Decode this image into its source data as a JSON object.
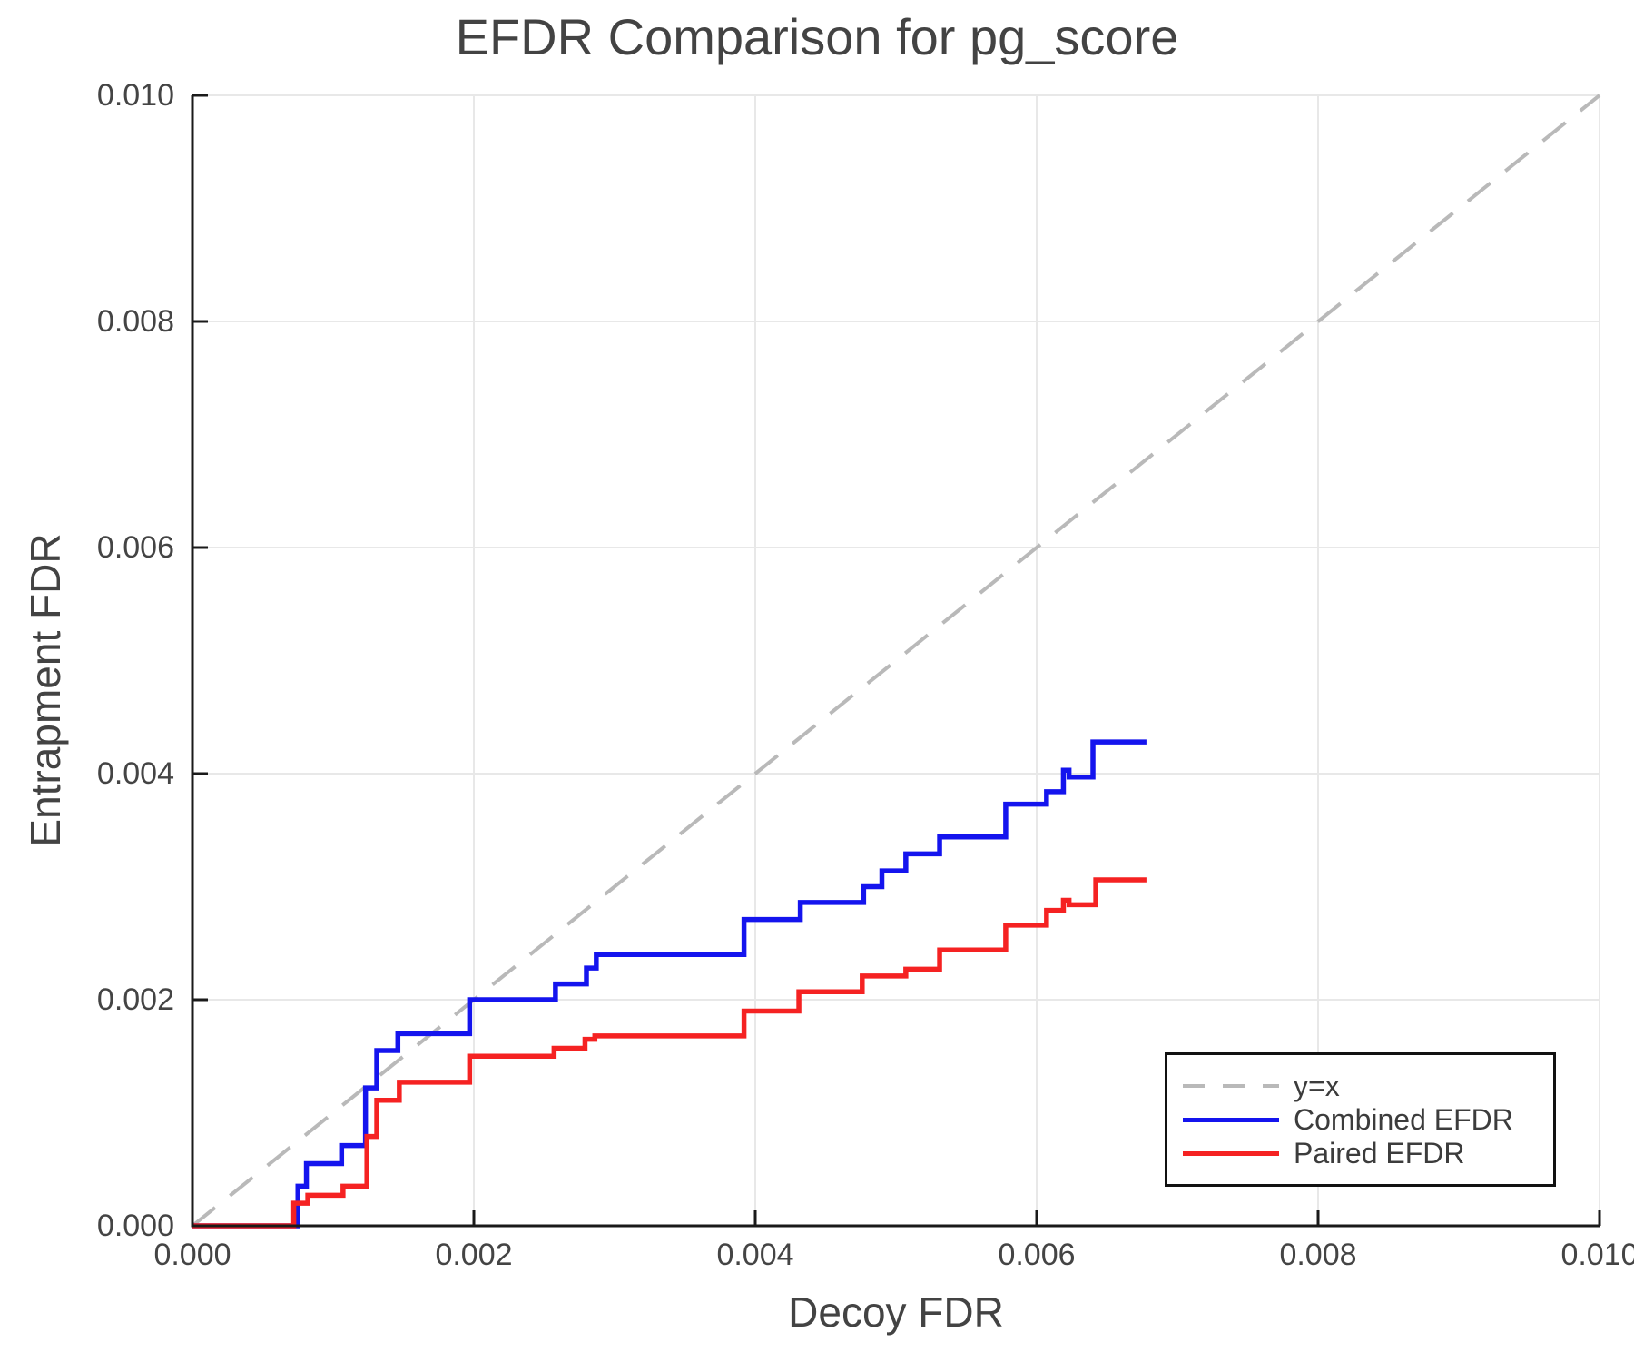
{
  "title": "EFDR Comparison for pg_score",
  "axes": {
    "xlabel": "Decoy FDR",
    "ylabel": "Entrapment FDR",
    "xtick_labels": [
      "0.000",
      "0.002",
      "0.004",
      "0.006",
      "0.008",
      "0.010"
    ],
    "ytick_labels": [
      "0.000",
      "0.002",
      "0.004",
      "0.006",
      "0.008",
      "0.010"
    ]
  },
  "colors": {
    "grid": "#e8e8e8",
    "spine": "#1a1a1a",
    "text": "#434343",
    "diagonal": "#b9b9b9",
    "combined": "#1414ee",
    "paired": "#f52222"
  },
  "chart_data": {
    "type": "line",
    "title": "EFDR Comparison for pg_score",
    "xlabel": "Decoy FDR",
    "ylabel": "Entrapment FDR",
    "xlim": [
      0.0,
      0.01
    ],
    "ylim": [
      0.0,
      0.01
    ],
    "xticks": [
      0.0,
      0.002,
      0.004,
      0.006,
      0.008,
      0.01
    ],
    "yticks": [
      0.0,
      0.002,
      0.004,
      0.006,
      0.008,
      0.01
    ],
    "grid": true,
    "legend_position": "lower right",
    "series": [
      {
        "name": "y=x",
        "style": "dashed",
        "color": "#b9b9b9",
        "points": [
          [
            0.0,
            0.0
          ],
          [
            0.01,
            0.01
          ]
        ]
      },
      {
        "name": "Combined EFDR",
        "style": "step",
        "color": "#1414ee",
        "start": [
          0.0,
          0.0
        ],
        "end_x": 0.00678,
        "steps": [
          [
            0.00075,
            0.00035
          ],
          [
            0.00081,
            0.00055
          ],
          [
            0.00106,
            0.00071
          ],
          [
            0.00123,
            0.00122
          ],
          [
            0.00131,
            0.00155
          ],
          [
            0.00146,
            0.0017
          ],
          [
            0.00197,
            0.002
          ],
          [
            0.00258,
            0.00214
          ],
          [
            0.0028,
            0.00228
          ],
          [
            0.00287,
            0.0024
          ],
          [
            0.00392,
            0.00271
          ],
          [
            0.00432,
            0.00286
          ],
          [
            0.00477,
            0.003
          ],
          [
            0.0049,
            0.00314
          ],
          [
            0.00507,
            0.00329
          ],
          [
            0.00531,
            0.00344
          ],
          [
            0.00578,
            0.00373
          ],
          [
            0.00607,
            0.00384
          ],
          [
            0.00619,
            0.00403
          ],
          [
            0.00623,
            0.00397
          ],
          [
            0.0064,
            0.00428
          ]
        ]
      },
      {
        "name": "Paired EFDR",
        "style": "step",
        "color": "#f52222",
        "start": [
          0.0,
          0.0
        ],
        "end_x": 0.00678,
        "steps": [
          [
            0.00072,
            0.0002
          ],
          [
            0.00082,
            0.00027
          ],
          [
            0.00107,
            0.00035
          ],
          [
            0.00124,
            0.00079
          ],
          [
            0.00131,
            0.00111
          ],
          [
            0.00147,
            0.00127
          ],
          [
            0.00197,
            0.0015
          ],
          [
            0.00257,
            0.00157
          ],
          [
            0.00279,
            0.00165
          ],
          [
            0.00286,
            0.00168
          ],
          [
            0.00392,
            0.0019
          ],
          [
            0.00431,
            0.00207
          ],
          [
            0.00476,
            0.00221
          ],
          [
            0.00507,
            0.00227
          ],
          [
            0.00531,
            0.00244
          ],
          [
            0.00578,
            0.00266
          ],
          [
            0.00607,
            0.00279
          ],
          [
            0.00619,
            0.00288
          ],
          [
            0.00623,
            0.00284
          ],
          [
            0.00642,
            0.00306
          ]
        ]
      }
    ]
  }
}
